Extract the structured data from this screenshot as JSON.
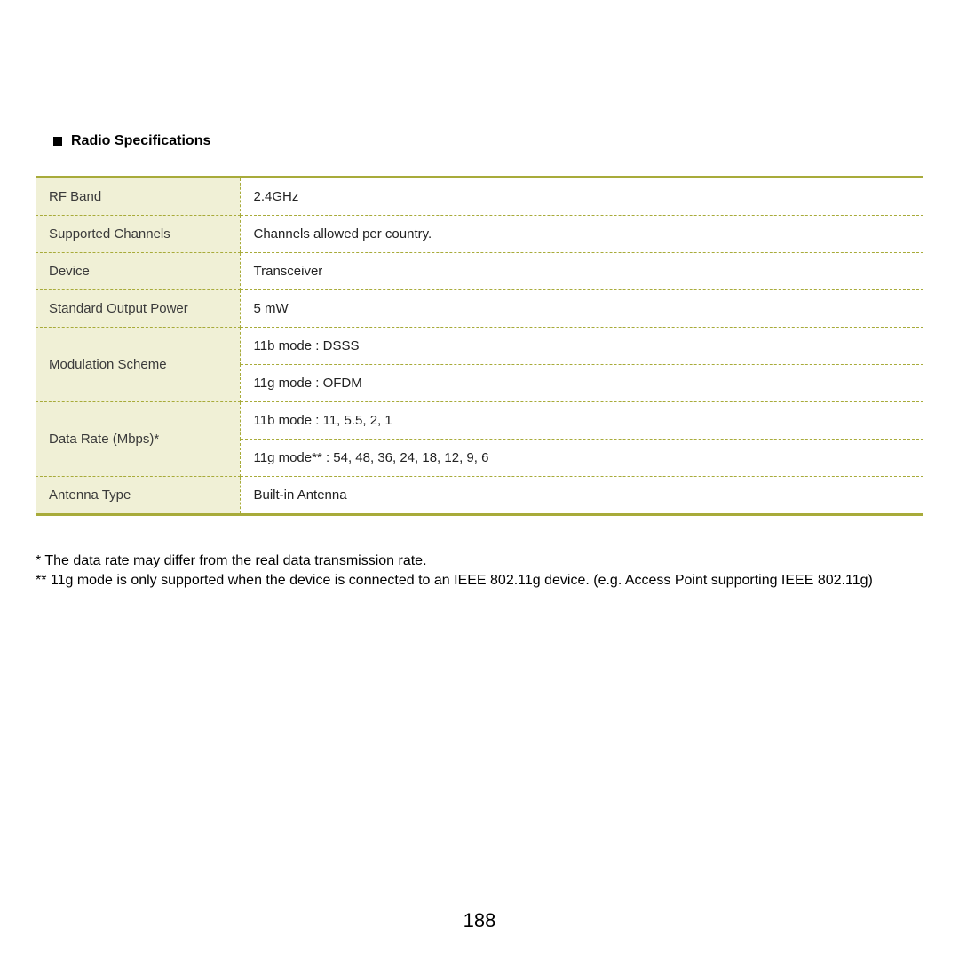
{
  "heading": "Radio Specifications",
  "table": {
    "border_color": "#a8ab3a",
    "label_bg": "#f0f0d6",
    "value_bg": "#ffffff",
    "rows": [
      {
        "label": "RF Band",
        "values": [
          "2.4GHz"
        ]
      },
      {
        "label": "Supported Channels",
        "values": [
          "Channels allowed per country."
        ]
      },
      {
        "label": "Device",
        "values": [
          "Transceiver"
        ]
      },
      {
        "label": "Standard Output Power",
        "values": [
          "5 mW"
        ]
      },
      {
        "label": "Modulation Scheme",
        "values": [
          "11b mode : DSSS",
          "11g mode : OFDM"
        ]
      },
      {
        "label": "Data Rate (Mbps)*",
        "values": [
          "11b mode : 11, 5.5, 2, 1",
          "11g mode** : 54, 48, 36, 24, 18, 12, 9, 6"
        ]
      },
      {
        "label": "Antenna Type",
        "values": [
          "Built-in Antenna"
        ]
      }
    ]
  },
  "footnotes": [
    "* The data rate may differ from the real data transmission rate.",
    "** 11g mode is only supported when the device is connected to an IEEE 802.11g device. (e.g. Access Point supporting IEEE 802.11g)"
  ],
  "page_number": "188",
  "font": {
    "heading_size": 16,
    "cell_size": 15,
    "footnote_size": 16,
    "pagenum_size": 22
  }
}
